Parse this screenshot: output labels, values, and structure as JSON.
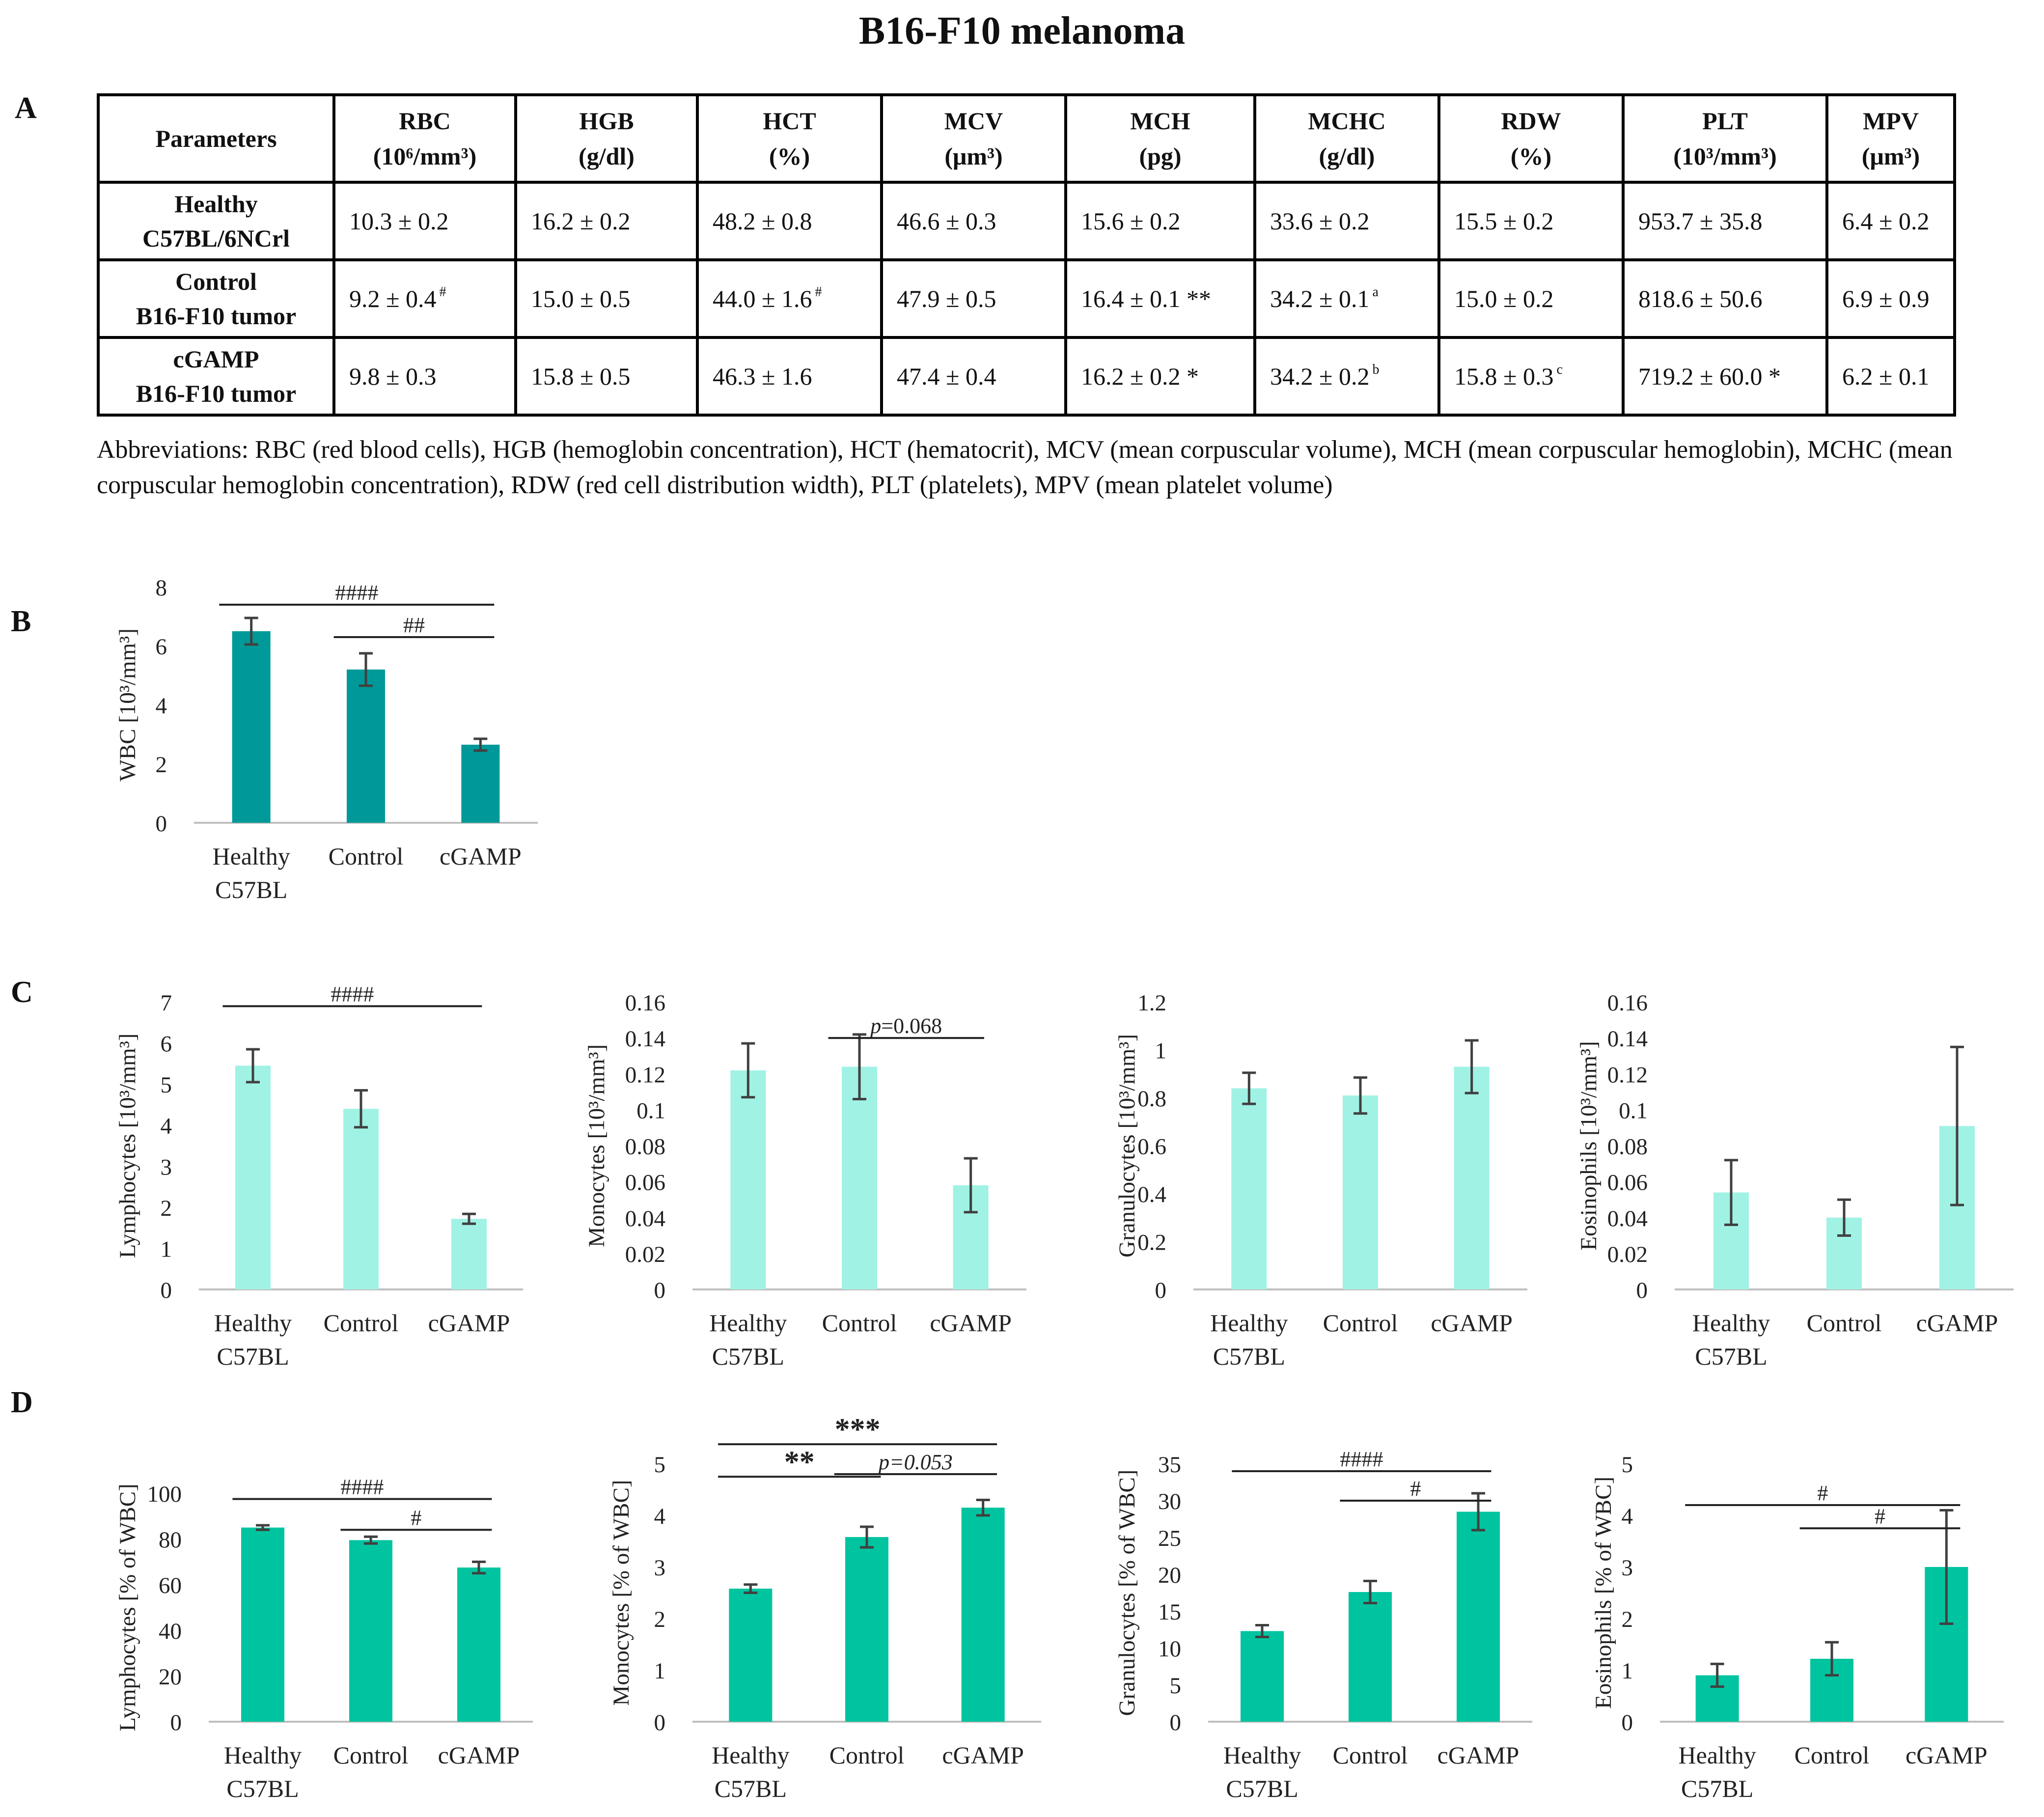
{
  "title": "B16-F10 melanoma",
  "panel_letters": [
    "A",
    "B",
    "C",
    "D"
  ],
  "table": {
    "header_params": "Parameters",
    "columns": [
      {
        "name": "RBC",
        "unit": "(10⁶/mm³)"
      },
      {
        "name": "HGB",
        "unit": "(g/dl)"
      },
      {
        "name": "HCT",
        "unit": "(%)"
      },
      {
        "name": "MCV",
        "unit": "(μm³)"
      },
      {
        "name": "MCH",
        "unit": "(pg)"
      },
      {
        "name": "MCHC",
        "unit": "(g/dl)"
      },
      {
        "name": "RDW",
        "unit": "(%)"
      },
      {
        "name": "PLT",
        "unit": "(10³/mm³)"
      },
      {
        "name": "MPV",
        "unit": "(μm³)"
      }
    ],
    "rows": [
      {
        "line1": "Healthy",
        "line2": "C57BL/6NCrl",
        "cells": [
          {
            "v": "10.3 ± 0.2",
            "m": ""
          },
          {
            "v": "16.2 ± 0.2",
            "m": ""
          },
          {
            "v": "48.2 ± 0.8",
            "m": ""
          },
          {
            "v": "46.6 ± 0.3",
            "m": ""
          },
          {
            "v": "15.6 ± 0.2",
            "m": ""
          },
          {
            "v": "33.6 ± 0.2",
            "m": ""
          },
          {
            "v": "15.5 ± 0.2",
            "m": ""
          },
          {
            "v": "953.7 ± 35.8",
            "m": ""
          },
          {
            "v": "6.4 ± 0.2",
            "m": ""
          }
        ]
      },
      {
        "line1": "Control",
        "line2": "B16-F10 tumor",
        "cells": [
          {
            "v": "9.2 ± 0.4",
            "m": "#"
          },
          {
            "v": "15.0 ± 0.5",
            "m": ""
          },
          {
            "v": "44.0 ± 1.6",
            "m": "#"
          },
          {
            "v": "47.9 ± 0.5",
            "m": ""
          },
          {
            "v": "16.4 ± 0.1 **",
            "m": ""
          },
          {
            "v": "34.2 ± 0.1",
            "m": "a"
          },
          {
            "v": "15.0 ± 0.2",
            "m": ""
          },
          {
            "v": "818.6 ± 50.6",
            "m": ""
          },
          {
            "v": "6.9 ± 0.9",
            "m": ""
          }
        ]
      },
      {
        "line1": "cGAMP",
        "line2": "B16-F10 tumor",
        "cells": [
          {
            "v": "9.8 ± 0.3",
            "m": ""
          },
          {
            "v": "15.8 ± 0.5",
            "m": ""
          },
          {
            "v": "46.3 ± 1.6",
            "m": ""
          },
          {
            "v": "47.4 ± 0.4",
            "m": ""
          },
          {
            "v": "16.2 ± 0.2 *",
            "m": ""
          },
          {
            "v": "34.2 ± 0.2",
            "m": "b"
          },
          {
            "v": "15.8 ± 0.3",
            "m": "c"
          },
          {
            "v": "719.2 ± 60.0 *",
            "m": ""
          },
          {
            "v": "6.2 ± 0.1",
            "m": ""
          }
        ]
      }
    ]
  },
  "abbreviations": "Abbreviations: RBC (red blood cells), HGB (hemoglobin concentration), HCT (hematocrit), MCV (mean corpuscular volume), MCH (mean corpuscular hemoglobin), MCHC (mean corpuscular hemoglobin concentration), RDW (red cell distribution width), PLT (platelets), MPV (mean platelet volume)",
  "colors": {
    "panel_b": "#009999",
    "panel_c": "#a0f2e4",
    "panel_d": "#00c49f",
    "error": "#404040",
    "axis": "#bfbfbf"
  },
  "chart_data": [
    {
      "id": "B-WBC",
      "type": "bar",
      "ylabel": "WBC [10³/mm³]",
      "categories": [
        [
          "Healthy",
          "C57BL"
        ],
        [
          "Control"
        ],
        [
          "cGAMP"
        ]
      ],
      "values": [
        6.5,
        5.2,
        2.65
      ],
      "errors": [
        0.45,
        0.55,
        0.2
      ],
      "ylim": [
        0,
        8
      ],
      "ticks": [
        0,
        2,
        4,
        6,
        8
      ],
      "tick_labels": [
        "0",
        "2",
        "4",
        "6",
        "8"
      ],
      "annotations": [
        {
          "from": 0,
          "to": 2,
          "y": 7.4,
          "label": "####"
        },
        {
          "from": 1,
          "to": 2,
          "y": 6.3,
          "label": "##"
        }
      ]
    },
    {
      "id": "C-lymph",
      "type": "bar",
      "ylabel": "Lymphocytes [10³/mm³]",
      "categories": [
        [
          "Healthy",
          "C57BL"
        ],
        [
          "Control"
        ],
        [
          "cGAMP"
        ]
      ],
      "values": [
        5.45,
        4.4,
        1.72
      ],
      "errors": [
        0.4,
        0.45,
        0.12
      ],
      "ylim": [
        0,
        7
      ],
      "ticks": [
        0,
        1,
        2,
        3,
        4,
        5,
        6,
        7
      ],
      "tick_labels": [
        "0",
        "1",
        "2",
        "3",
        "4",
        "5",
        "6",
        "7"
      ],
      "annotations": [
        {
          "from": 0,
          "to": 2,
          "y": 6.9,
          "label": "####"
        }
      ]
    },
    {
      "id": "C-mono",
      "type": "bar",
      "ylabel": "Monocytes [10³/mm³]",
      "categories": [
        [
          "Healthy",
          "C57BL"
        ],
        [
          "Control"
        ],
        [
          "cGAMP"
        ]
      ],
      "values": [
        0.122,
        0.124,
        0.058
      ],
      "errors": [
        0.015,
        0.018,
        0.015
      ],
      "ylim": [
        0,
        0.16
      ],
      "ticks": [
        0,
        0.02,
        0.04,
        0.06,
        0.08,
        0.1,
        0.12,
        0.14,
        0.16
      ],
      "tick_labels": [
        "0",
        "0.02",
        "0.04",
        "0.06",
        "0.08",
        "0.1",
        "0.12",
        "0.14",
        "0.16"
      ],
      "annotations": [
        {
          "from": 1,
          "to": 2,
          "y": 0.14,
          "label": "p=0.068",
          "italic_p": true
        }
      ]
    },
    {
      "id": "C-gran",
      "type": "bar",
      "ylabel": "Granulocytes [10³/mm³]",
      "categories": [
        [
          "Healthy",
          "C57BL"
        ],
        [
          "Control"
        ],
        [
          "cGAMP"
        ]
      ],
      "values": [
        0.84,
        0.81,
        0.93
      ],
      "errors": [
        0.065,
        0.075,
        0.11
      ],
      "ylim": [
        0,
        1.2
      ],
      "ticks": [
        0,
        0.2,
        0.4,
        0.6,
        0.8,
        1,
        1.2
      ],
      "tick_labels": [
        "0",
        "0.2",
        "0.4",
        "0.6",
        "0.8",
        "1",
        "1.2"
      ],
      "annotations": []
    },
    {
      "id": "C-eos",
      "type": "bar",
      "ylabel": "Eosinophils [10³/mm³]",
      "categories": [
        [
          "Healthy",
          "C57BL"
        ],
        [
          "Control"
        ],
        [
          "cGAMP"
        ]
      ],
      "values": [
        0.054,
        0.04,
        0.091
      ],
      "errors": [
        0.018,
        0.01,
        0.044
      ],
      "ylim": [
        0,
        0.16
      ],
      "ticks": [
        0,
        0.02,
        0.04,
        0.06,
        0.08,
        0.1,
        0.12,
        0.14,
        0.16
      ],
      "tick_labels": [
        "0",
        "0.02",
        "0.04",
        "0.06",
        "0.08",
        "0.1",
        "0.12",
        "0.14",
        "0.16"
      ],
      "annotations": []
    },
    {
      "id": "D-lymph",
      "type": "bar",
      "ylabel": "Lymphocytes [% of WBC]",
      "categories": [
        [
          "Healthy",
          "C57BL"
        ],
        [
          "Control"
        ],
        [
          "cGAMP"
        ]
      ],
      "values": [
        85,
        79.5,
        67.5
      ],
      "errors": [
        1,
        1.5,
        2.5
      ],
      "ylim": [
        0,
        100
      ],
      "ticks": [
        0,
        20,
        40,
        60,
        80,
        100
      ],
      "tick_labels": [
        "0",
        "20",
        "40",
        "60",
        "80",
        "100"
      ],
      "annotations": [
        {
          "from": 0,
          "to": 2,
          "y": 97.5,
          "label": "####"
        },
        {
          "from": 1,
          "to": 2,
          "y": 84,
          "label": "#"
        }
      ]
    },
    {
      "id": "D-mono",
      "type": "bar",
      "ylabel": "Monocytes  [% of WBC]",
      "categories": [
        [
          "Healthy",
          "C57BL"
        ],
        [
          "Control"
        ],
        [
          "cGAMP"
        ]
      ],
      "values": [
        2.58,
        3.58,
        4.15
      ],
      "errors": [
        0.08,
        0.2,
        0.15
      ],
      "ylim": [
        0,
        5
      ],
      "ticks": [
        0,
        1,
        2,
        3,
        4,
        5
      ],
      "tick_labels": [
        "0",
        "1",
        "2",
        "3",
        "4",
        "5"
      ],
      "annotations": [
        {
          "from": 0,
          "to": 2,
          "y": 5.38,
          "label": "***",
          "big": true
        },
        {
          "from": 0,
          "to": 1,
          "y": 4.75,
          "label": "**",
          "big": true
        },
        {
          "from": 1,
          "to": 2,
          "y": 4.8,
          "label": "p=0.053",
          "italic_all": true
        }
      ]
    },
    {
      "id": "D-gran",
      "type": "bar",
      "ylabel": "Granulocytes [% of WBC]",
      "categories": [
        [
          "Healthy",
          "C57BL"
        ],
        [
          "Control"
        ],
        [
          "cGAMP"
        ]
      ],
      "values": [
        12.3,
        17.6,
        28.5
      ],
      "errors": [
        0.8,
        1.5,
        2.5
      ],
      "ylim": [
        0,
        35
      ],
      "ticks": [
        0,
        5,
        10,
        15,
        20,
        25,
        30,
        35
      ],
      "tick_labels": [
        "0",
        "5",
        "10",
        "15",
        "20",
        "25",
        "30",
        "35"
      ],
      "annotations": [
        {
          "from": 0,
          "to": 2,
          "y": 34,
          "label": "####"
        },
        {
          "from": 1,
          "to": 2,
          "y": 30,
          "label": "#"
        }
      ]
    },
    {
      "id": "D-eos",
      "type": "bar",
      "ylabel": "Eosinophils [% of WBC]",
      "categories": [
        [
          "Healthy",
          "C57BL"
        ],
        [
          "Control"
        ],
        [
          "cGAMP"
        ]
      ],
      "values": [
        0.9,
        1.22,
        3.0
      ],
      "errors": [
        0.22,
        0.32,
        1.1
      ],
      "ylim": [
        0,
        5
      ],
      "ticks": [
        0,
        1,
        2,
        3,
        4,
        5
      ],
      "tick_labels": [
        "0",
        "1",
        "2",
        "3",
        "4",
        "5"
      ],
      "annotations": [
        {
          "from": 0,
          "to": 2,
          "y": 4.2,
          "label": "#"
        },
        {
          "from": 1,
          "to": 2,
          "y": 3.75,
          "label": "#"
        }
      ]
    }
  ]
}
